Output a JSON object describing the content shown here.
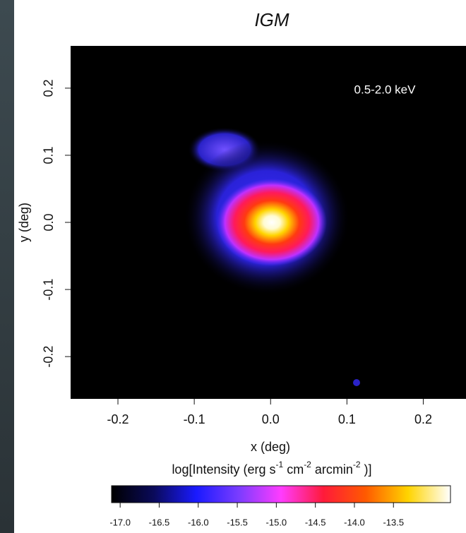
{
  "chart_data": {
    "type": "heatmap",
    "title": "IGM",
    "annotation": "0.5-2.0 keV",
    "x_label": "x (deg)",
    "y_label": "y (deg)",
    "xlim": [
      -0.262,
      0.256
    ],
    "ylim": [
      -0.263,
      0.263
    ],
    "xticks": [
      {
        "value": -0.2,
        "label": "-0.2"
      },
      {
        "value": -0.1,
        "label": "-0.1"
      },
      {
        "value": 0,
        "label": "0.0"
      },
      {
        "value": 0.1,
        "label": "0.1"
      },
      {
        "value": 0.2,
        "label": "0.2"
      }
    ],
    "yticks": [
      {
        "value": -0.2,
        "label": "-0.2"
      },
      {
        "value": -0.1,
        "label": "-0.1"
      },
      {
        "value": 0,
        "label": "0.0"
      },
      {
        "value": 0.1,
        "label": "0.1"
      },
      {
        "value": 0.2,
        "label": "0.2"
      }
    ],
    "colorbar_label": [
      "log[Intensity (erg s",
      "-1",
      " cm",
      "-2",
      " arcmin",
      "-2",
      " )]"
    ],
    "colorbar_lim": [
      -17.11,
      -12.77
    ],
    "colorbar_ticks": [
      {
        "value": -17,
        "label": "-17.0"
      },
      {
        "value": -16.5,
        "label": "-16.5"
      },
      {
        "value": -16,
        "label": "-16.0"
      },
      {
        "value": -15.5,
        "label": "-15.5"
      },
      {
        "value": -15,
        "label": "-15.0"
      },
      {
        "value": -14.5,
        "label": "-14.5"
      },
      {
        "value": -14,
        "label": "-14.0"
      },
      {
        "value": -13.5,
        "label": "-13.5"
      }
    ],
    "colormap": [
      "#000000",
      "#0a0a5a",
      "#1a1aff",
      "#7a3cff",
      "#ff3cff",
      "#ff1a3a",
      "#ff5a00",
      "#ffd400",
      "#ffffff"
    ]
  }
}
